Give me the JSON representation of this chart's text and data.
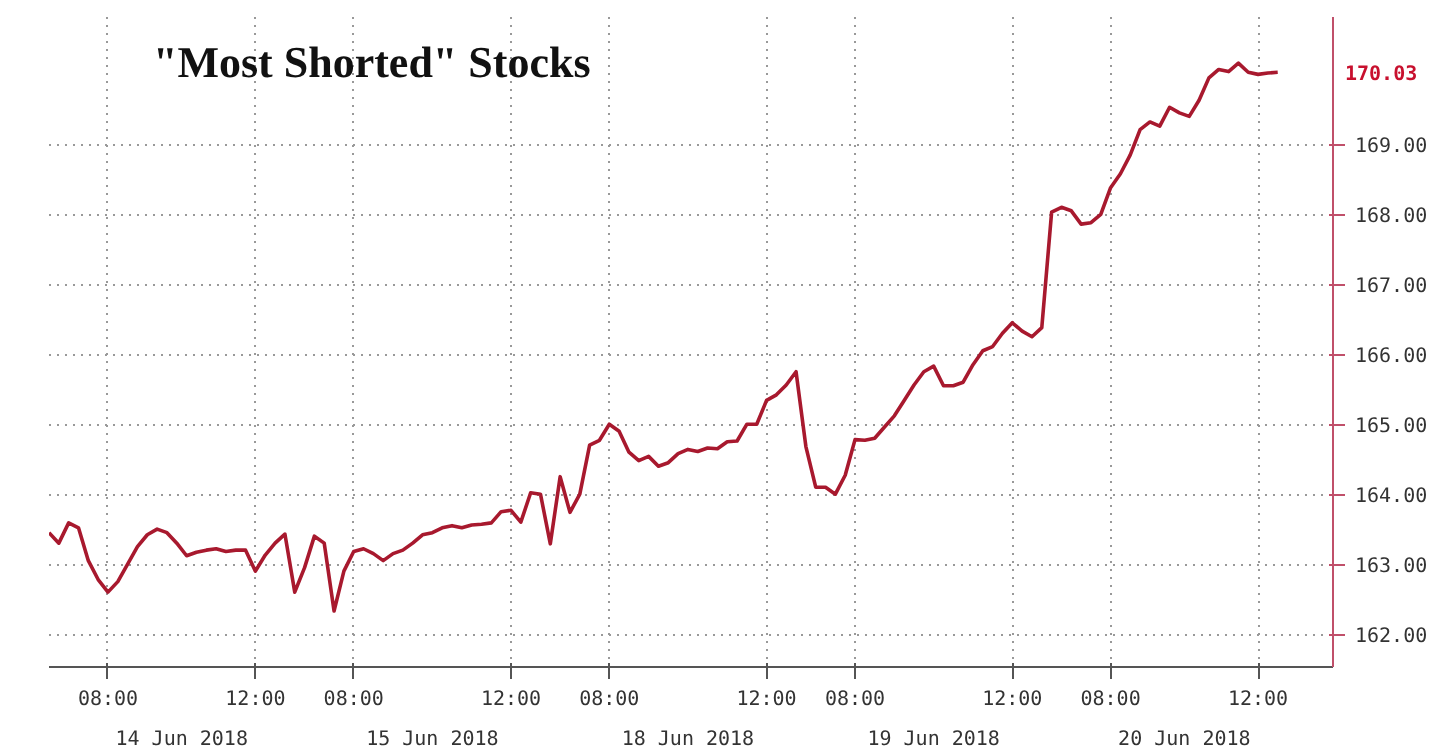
{
  "chart_data": {
    "type": "line",
    "title": "\"Most Shorted\" Stocks",
    "categories": [
      null,
      null,
      null,
      null,
      null,
      null,
      "08:00",
      null,
      null,
      null,
      null,
      null,
      null,
      null,
      null,
      null,
      null,
      null,
      null,
      null,
      null,
      "12:00",
      null,
      null,
      null,
      null,
      null,
      null,
      null,
      null,
      null,
      "08:00",
      null,
      null,
      null,
      null,
      null,
      null,
      null,
      null,
      null,
      null,
      null,
      null,
      null,
      null,
      null,
      "12:00",
      null,
      null,
      null,
      null,
      null,
      null,
      null,
      null,
      null,
      "08:00",
      null,
      null,
      null,
      null,
      null,
      null,
      null,
      null,
      null,
      null,
      null,
      null,
      null,
      null,
      null,
      "12:00",
      null,
      null,
      null,
      null,
      null,
      null,
      null,
      null,
      "08:00",
      null,
      null,
      null,
      null,
      null,
      null,
      null,
      null,
      null,
      null,
      null,
      null,
      null,
      null,
      null,
      "12:00",
      null,
      null,
      null,
      null,
      null,
      null,
      null,
      null,
      null,
      "08:00",
      null,
      null,
      null,
      null,
      null,
      null,
      null,
      null,
      null,
      null,
      null,
      null,
      null,
      null,
      "12:00",
      null,
      null
    ],
    "series": [
      {
        "color": "#a8192e",
        "values": [
          163.45,
          163.3,
          163.59,
          163.52,
          163.05,
          162.78,
          162.6,
          162.75,
          163.0,
          163.25,
          163.42,
          163.5,
          163.45,
          163.3,
          163.12,
          163.17,
          163.2,
          163.22,
          163.18,
          163.2,
          163.2,
          162.9,
          163.13,
          163.3,
          163.43,
          162.6,
          162.95,
          163.4,
          163.3,
          162.33,
          162.9,
          163.18,
          163.22,
          163.15,
          163.05,
          163.15,
          163.2,
          163.3,
          163.42,
          163.45,
          163.52,
          163.55,
          163.52,
          163.56,
          163.57,
          163.59,
          163.75,
          163.77,
          163.6,
          164.02,
          164.0,
          163.29,
          164.25,
          163.74,
          164.0,
          164.7,
          164.77,
          165.0,
          164.9,
          164.6,
          164.48,
          164.54,
          164.4,
          164.45,
          164.58,
          164.64,
          164.61,
          164.66,
          164.65,
          164.75,
          164.76,
          165.0,
          165.0,
          165.34,
          165.42,
          165.56,
          165.75,
          164.68,
          164.1,
          164.1,
          164.0,
          164.27,
          164.78,
          164.77,
          164.8,
          164.96,
          165.12,
          165.34,
          165.56,
          165.75,
          165.83,
          165.55,
          165.55,
          165.6,
          165.85,
          166.05,
          166.11,
          166.3,
          166.45,
          166.33,
          166.25,
          166.38,
          168.03,
          168.1,
          168.05,
          167.86,
          167.88,
          168.0,
          168.38,
          168.58,
          168.85,
          169.21,
          169.32,
          169.26,
          169.53,
          169.45,
          169.4,
          169.63,
          169.95,
          170.07,
          170.04,
          170.16,
          170.03,
          170.0,
          170.02,
          170.03
        ]
      }
    ],
    "ylim": [
      161.53,
      170.82
    ],
    "yticks": [
      {
        "value": 162,
        "label": "162.00"
      },
      {
        "value": 163,
        "label": "163.00"
      },
      {
        "value": 164,
        "label": "164.00"
      },
      {
        "value": 165,
        "label": "165.00"
      },
      {
        "value": 166,
        "label": "166.00"
      },
      {
        "value": 167,
        "label": "167.00"
      },
      {
        "value": 168,
        "label": "168.00"
      },
      {
        "value": 169,
        "label": "169.00"
      }
    ],
    "annotations": [
      "14 Jun 2018",
      "15 Jun 2018",
      "18 Jun 2018",
      "19 Jun 2018",
      "20 Jun 2018",
      "170.03"
    ],
    "grid": true
  }
}
